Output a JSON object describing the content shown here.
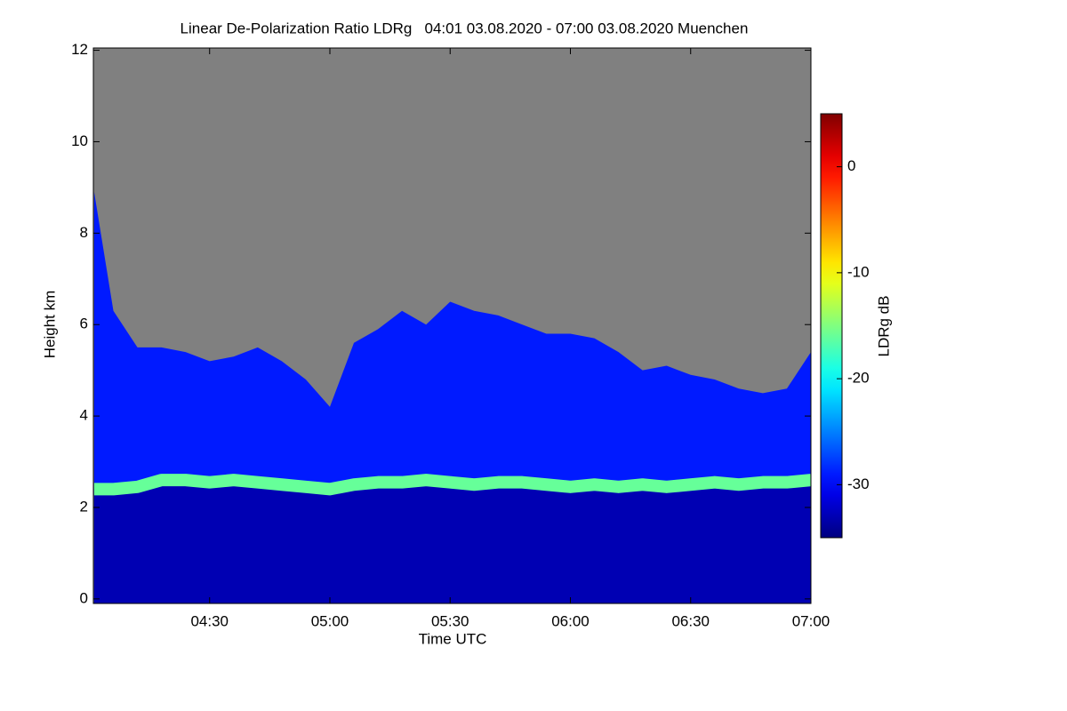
{
  "chart_data": {
    "type": "profile",
    "title": "Linear De-Polarization Ratio LDRg   04:01 03.08.2020 - 07:00 03.08.2020 Muenchen",
    "xlabel": "Time UTC",
    "ylabel": "Height km",
    "colorbar_label": "LDRg dB",
    "x": [
      4.02,
      4.1,
      4.2,
      4.3,
      4.4,
      4.5,
      4.6,
      4.7,
      4.8,
      4.9,
      5.0,
      5.1,
      5.2,
      5.3,
      5.4,
      5.5,
      5.6,
      5.7,
      5.8,
      5.9,
      6.0,
      6.1,
      6.2,
      6.3,
      6.4,
      6.5,
      6.6,
      6.7,
      6.8,
      6.9,
      7.0
    ],
    "cloud_top": [
      8.9,
      6.3,
      5.5,
      5.5,
      5.4,
      5.2,
      5.3,
      5.5,
      5.2,
      4.8,
      4.2,
      5.6,
      5.9,
      6.3,
      6.0,
      6.5,
      6.3,
      6.2,
      6.0,
      5.8,
      5.8,
      5.7,
      5.4,
      5.0,
      5.1,
      4.9,
      4.8,
      4.6,
      4.5,
      4.6,
      5.4
    ],
    "band_height": [
      2.4,
      2.4,
      2.45,
      2.6,
      2.6,
      2.55,
      2.6,
      2.55,
      2.5,
      2.45,
      2.4,
      2.5,
      2.55,
      2.55,
      2.6,
      2.55,
      2.5,
      2.55,
      2.55,
      2.5,
      2.45,
      2.5,
      2.45,
      2.5,
      2.45,
      2.5,
      2.55,
      2.5,
      2.55,
      2.55,
      2.6
    ],
    "cloud_ldr": -29,
    "band_ldr": -16,
    "rain_ldr": -33,
    "xlim": [
      4.0167,
      7.0
    ],
    "xticks": [
      {
        "value": 4.5,
        "label": "04:30"
      },
      {
        "value": 5.0,
        "label": "05:00"
      },
      {
        "value": 5.5,
        "label": "05:30"
      },
      {
        "value": 6.0,
        "label": "06:00"
      },
      {
        "value": 6.5,
        "label": "06:30"
      },
      {
        "value": 7.0,
        "label": "07:00"
      }
    ],
    "ylim": [
      -0.1,
      12.05
    ],
    "yticks": [
      0,
      2,
      4,
      6,
      8,
      10,
      12
    ],
    "clim": [
      -35,
      5
    ],
    "cticks": [
      0,
      -10,
      -20,
      -30
    ],
    "no_signal_color": "#808080",
    "colormap": "jet"
  }
}
